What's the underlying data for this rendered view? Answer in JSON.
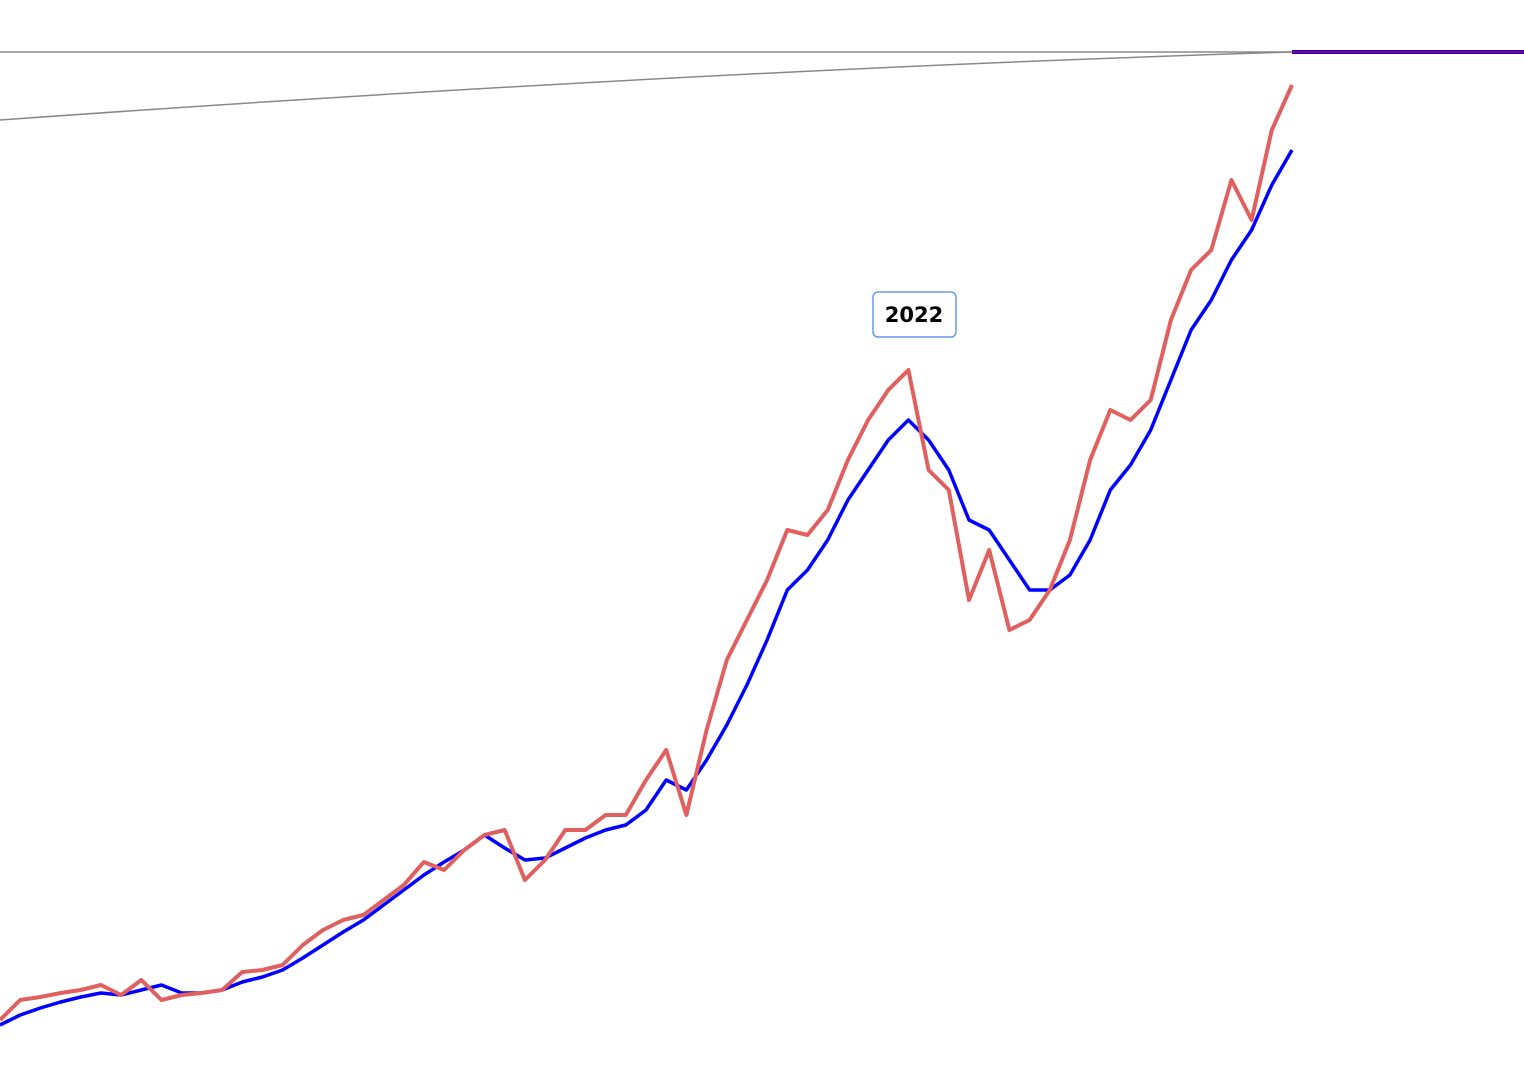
{
  "chart_data": {
    "type": "line",
    "annotation": "2022",
    "ylim": [
      0,
      988
    ],
    "series": [
      {
        "color": "#e06060",
        "values": [
          20,
          40,
          43,
          47,
          50,
          55,
          45,
          60,
          40,
          45,
          47,
          50,
          68,
          70,
          75,
          95,
          110,
          120,
          125,
          140,
          155,
          178,
          170,
          190,
          205,
          210,
          160,
          180,
          210,
          210,
          225,
          225,
          260,
          290,
          225,
          310,
          380,
          420,
          460,
          510,
          505,
          530,
          580,
          620,
          650,
          670,
          570,
          550,
          440,
          490,
          410,
          420,
          450,
          500,
          580,
          630,
          620,
          640,
          720,
          770,
          790,
          860,
          820,
          910,
          955
        ]
      },
      {
        "color": "#0000ff",
        "values": [
          15,
          25,
          32,
          38,
          43,
          47,
          45,
          50,
          55,
          47,
          47,
          50,
          58,
          63,
          70,
          82,
          95,
          108,
          120,
          135,
          150,
          165,
          178,
          190,
          205,
          192,
          180,
          182,
          192,
          202,
          210,
          215,
          230,
          260,
          250,
          280,
          315,
          355,
          400,
          450,
          470,
          500,
          540,
          570,
          600,
          620,
          600,
          570,
          520,
          510,
          480,
          450,
          450,
          465,
          500,
          550,
          575,
          610,
          660,
          710,
          740,
          780,
          810,
          855,
          890
        ]
      }
    ]
  }
}
